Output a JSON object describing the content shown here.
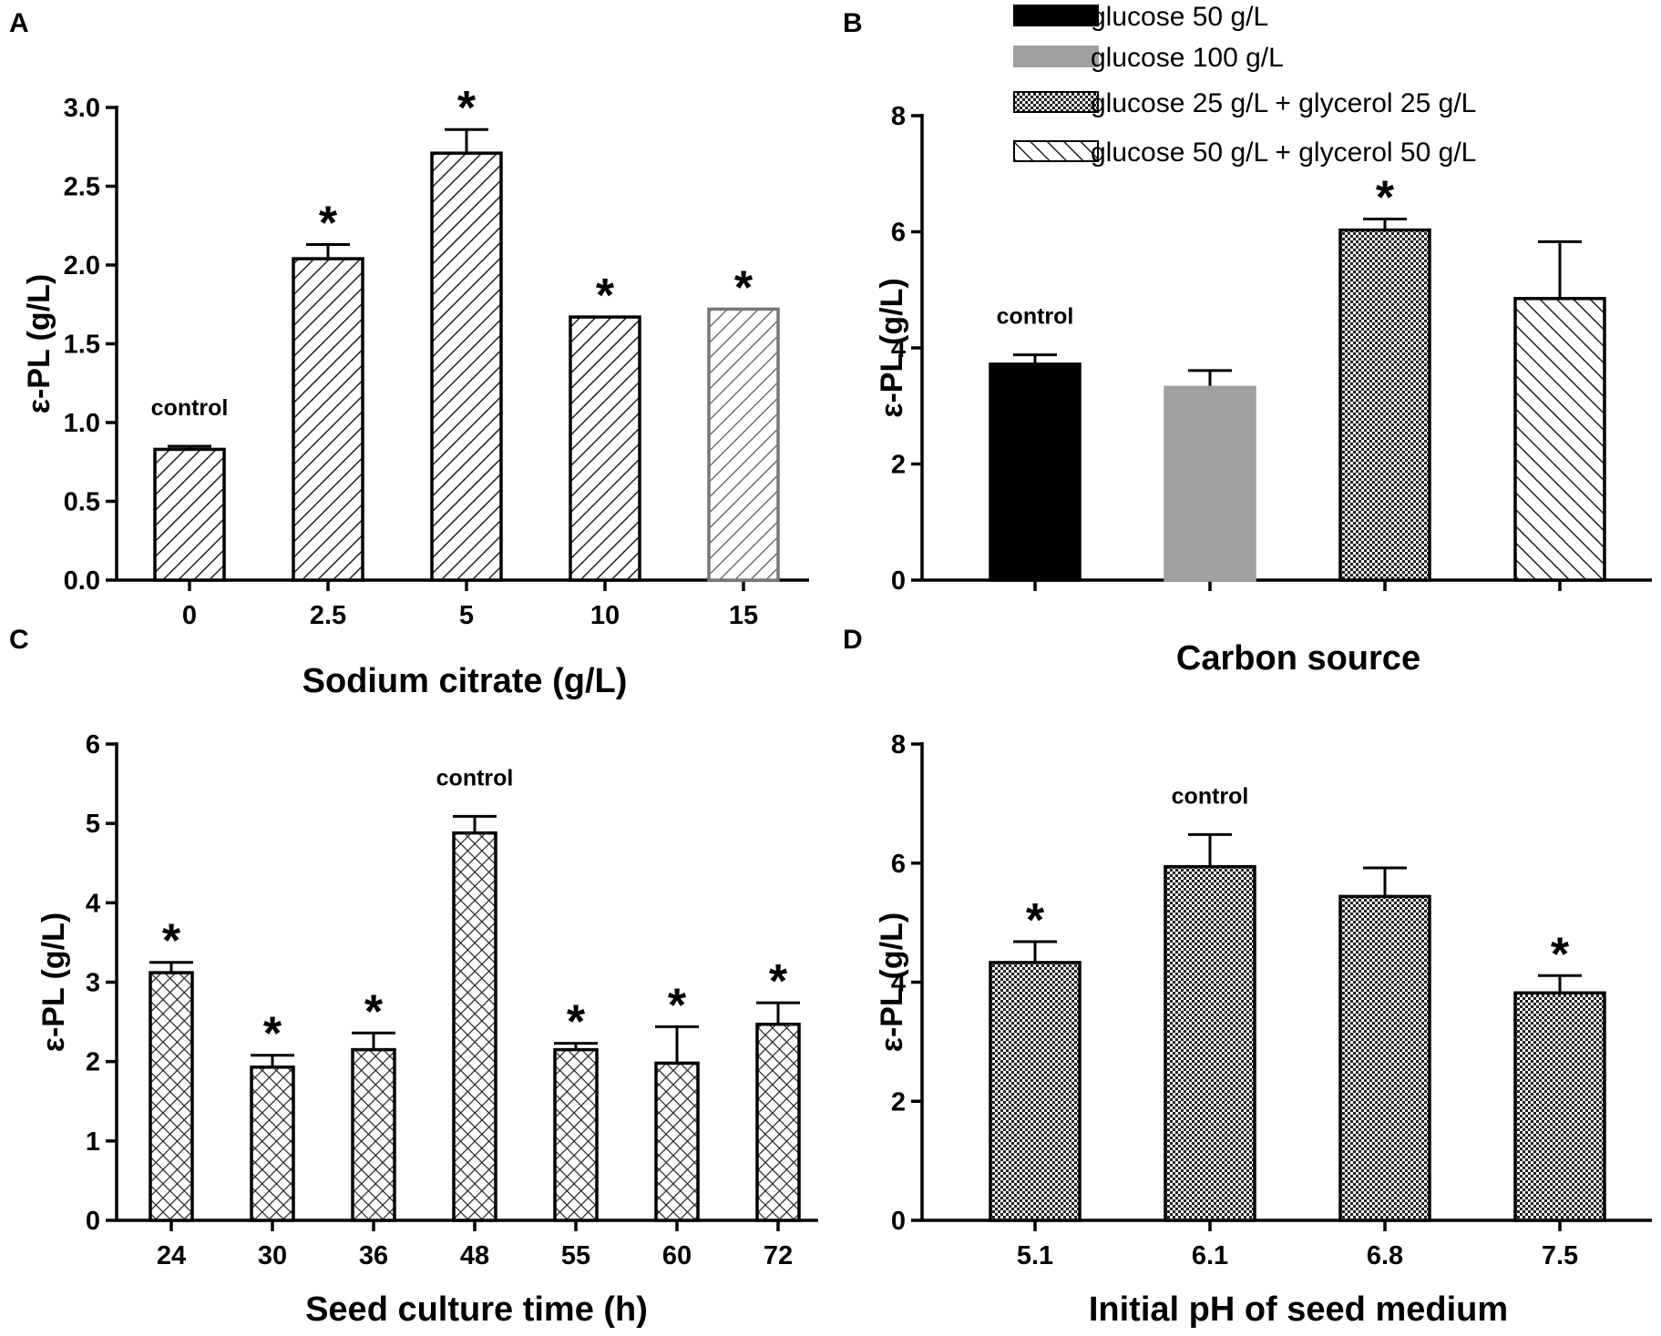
{
  "chart_data": [
    {
      "panel": "A",
      "type": "bar",
      "title": "",
      "xlabel": "Sodium citrate (g/L)",
      "ylabel": "ε-PL (g/L)",
      "ylim": [
        0,
        3.0
      ],
      "yticks": [
        0.0,
        0.5,
        1.0,
        1.5,
        2.0,
        2.5,
        3.0
      ],
      "ytick_labels": [
        "0.0",
        "0.5",
        "1.0",
        "1.5",
        "2.0",
        "2.5",
        "3.0"
      ],
      "categories": [
        "0",
        "2.5",
        "5",
        "10",
        "15"
      ],
      "values": [
        0.83,
        2.04,
        2.71,
        1.67,
        1.72
      ],
      "errors": [
        0.02,
        0.09,
        0.15,
        0.0,
        0.0
      ],
      "annotations": [
        "control",
        "*",
        "*",
        "*",
        "*"
      ],
      "pattern": "diag"
    },
    {
      "panel": "B",
      "type": "bar",
      "title": "",
      "xlabel": "Carbon source",
      "ylabel": "ε-PL (g/L)",
      "ylim": [
        0,
        8
      ],
      "yticks": [
        0,
        2,
        4,
        6,
        8
      ],
      "ytick_labels": [
        "0",
        "2",
        "4",
        "6",
        "8"
      ],
      "categories": [
        "glucose 50 g/L",
        "glucose 100 g/L",
        "glucose 25 g/L + glycerol 25 g/L",
        "glucose 50 g/L + glycerol 50 g/L"
      ],
      "values": [
        3.72,
        3.32,
        6.03,
        4.85
      ],
      "errors": [
        0.16,
        0.29,
        0.19,
        0.98
      ],
      "annotations": [
        "control",
        "",
        "*",
        ""
      ],
      "patterns": [
        "solid-black",
        "solid-gray",
        "checker",
        "diag-back"
      ],
      "legend": {
        "placement": "top-right",
        "entries": [
          "glucose 50 g/L",
          "glucose 100 g/L",
          "glucose 25 g/L + glycerol 25 g/L",
          "glucose 50 g/L + glycerol 50 g/L"
        ]
      }
    },
    {
      "panel": "C",
      "type": "bar",
      "title": "",
      "xlabel": "Seed culture time (h)",
      "ylabel": "ε-PL (g/L)",
      "ylim": [
        0,
        6
      ],
      "yticks": [
        0,
        1,
        2,
        3,
        4,
        5,
        6
      ],
      "ytick_labels": [
        "0",
        "1",
        "2",
        "3",
        "4",
        "5",
        "6"
      ],
      "categories": [
        "24",
        "30",
        "36",
        "48",
        "55",
        "60",
        "72"
      ],
      "values": [
        3.12,
        1.93,
        2.15,
        4.88,
        2.15,
        1.98,
        2.47
      ],
      "errors": [
        0.13,
        0.15,
        0.21,
        0.21,
        0.08,
        0.46,
        0.27
      ],
      "annotations": [
        "*",
        "*",
        "*",
        "control",
        "*",
        "*",
        "*"
      ],
      "pattern": "crosshatch"
    },
    {
      "panel": "D",
      "type": "bar",
      "title": "",
      "xlabel": "Initial pH of seed medium",
      "ylabel": "ε-PL (g/L)",
      "ylim": [
        0,
        8
      ],
      "yticks": [
        0,
        2,
        4,
        6,
        8
      ],
      "ytick_labels": [
        "0",
        "2",
        "4",
        "6",
        "8"
      ],
      "categories": [
        "5.1",
        "6.1",
        "6.8",
        "7.5"
      ],
      "values": [
        4.33,
        5.94,
        5.44,
        3.82
      ],
      "errors": [
        0.35,
        0.54,
        0.48,
        0.29
      ],
      "annotations": [
        "*",
        "control",
        "",
        "*"
      ],
      "pattern": "checker"
    }
  ]
}
